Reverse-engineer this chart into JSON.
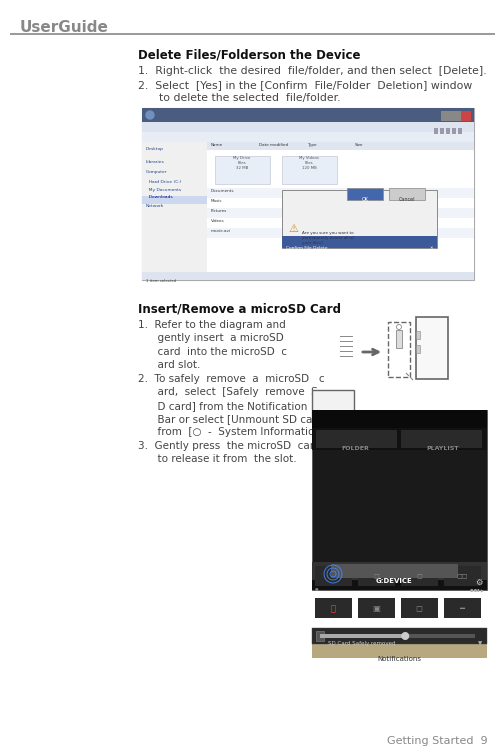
{
  "bg_color": "#ffffff",
  "header_text": "UserGuide",
  "header_color": "#888888",
  "header_line_color": "#888888",
  "footer_text": "Getting Started  9",
  "footer_color": "#888888",
  "s1_title": "Delete Files/Folderson the Device",
  "s1_line1": "1.  Right-click  the desired  file/folder, and then select  [Delete].",
  "s1_line2": "2.  Select  [Yes] in the [Confirm  File/Folder  Deletion] window\n      to delete the selected  file/folder.",
  "s2_title": "Insert/Remove a microSD Card",
  "s2_line1": "1.  Refer to the diagram and\n      gently insert  a microSD\n      card  into the microSD  c\n      ard slot.",
  "s2_line2": "2.  To safely  remove  a  microSD   c\n      ard,  select  [Safely  remove  S\n      D card] from the Notification\n      Bar or select [Unmount SD card]\n      from  [○  -  System Information].",
  "s2_line3": "3.  Gently press  the microSD  card\n      to release it from  the slot.",
  "text_color": "#444444",
  "title_color": "#111111"
}
